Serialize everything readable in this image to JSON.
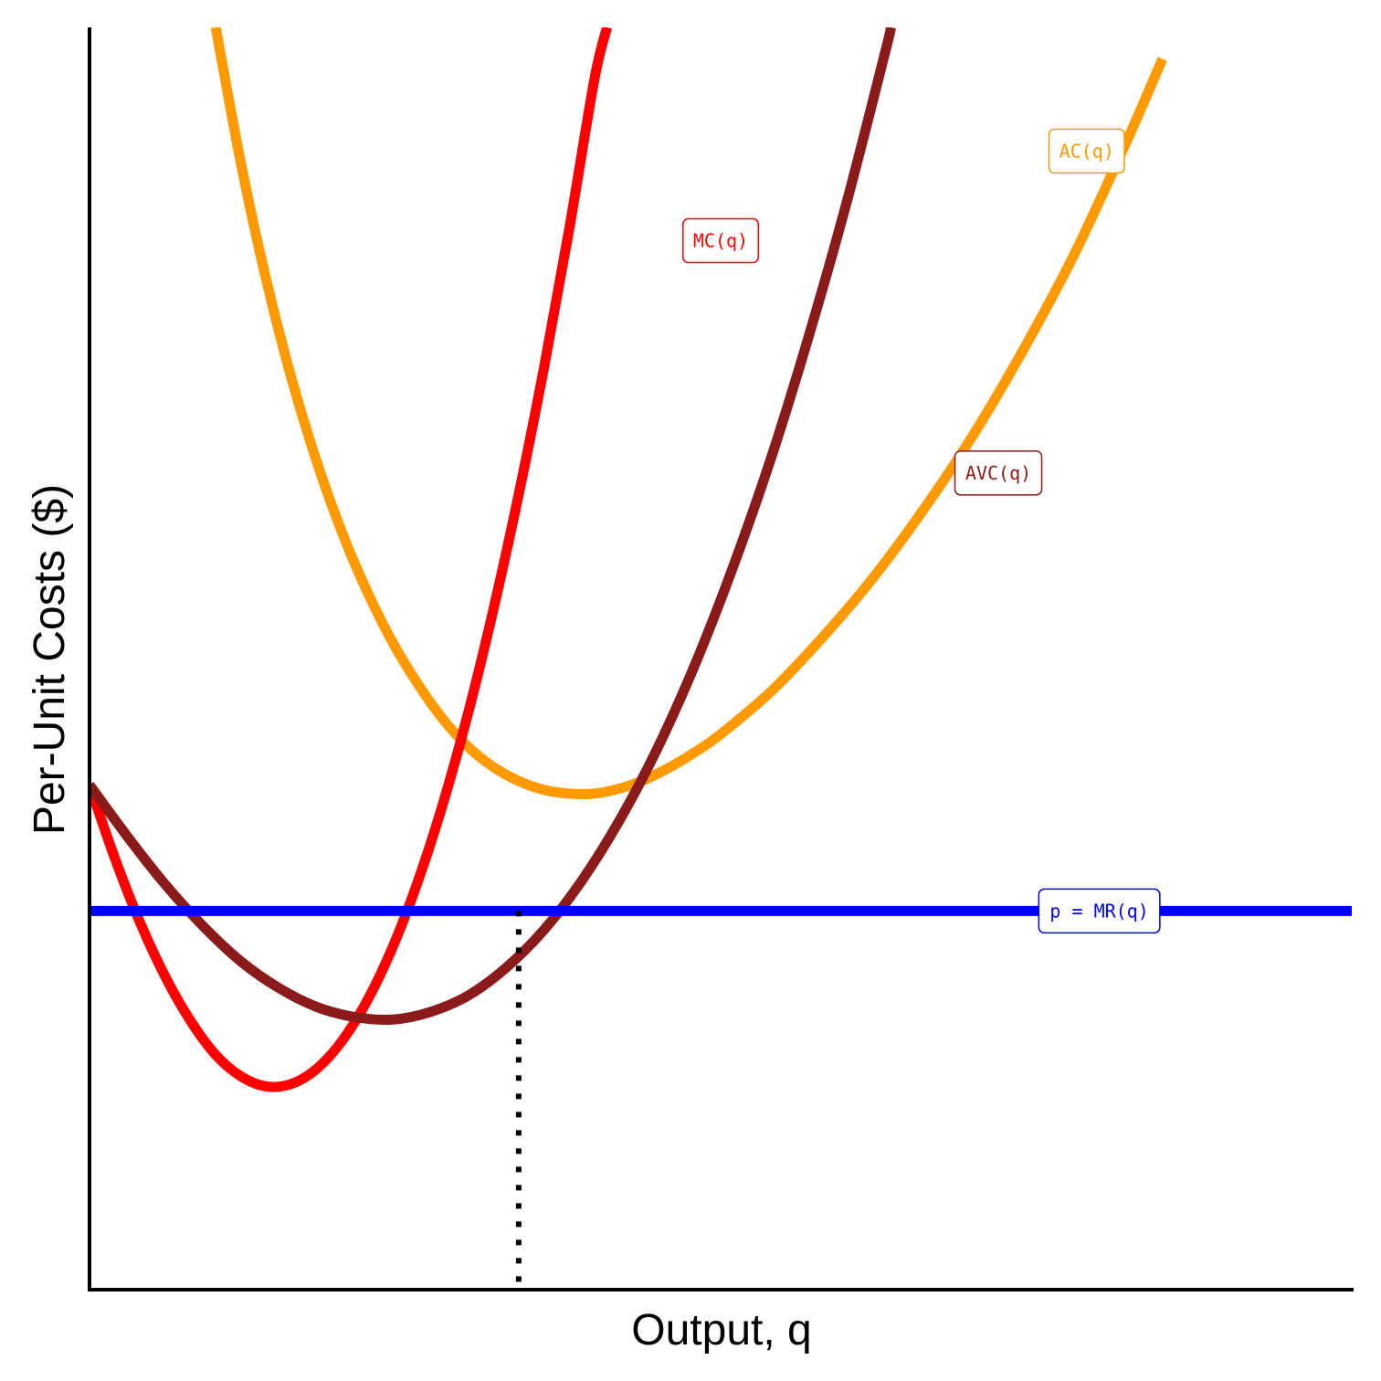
{
  "chart_data": {
    "type": "line",
    "title": "",
    "xlabel": "Output, q",
    "ylabel": "Per-Unit Costs ($)",
    "xlim": [
      0,
      10
    ],
    "ylim": [
      0,
      10
    ],
    "grid": false,
    "ticks": false,
    "series": [
      {
        "name": "AC(q)",
        "color": "#FF9900",
        "label_at": [
          7.9,
          9.02
        ],
        "points": [
          [
            1.0,
            10.0
          ],
          [
            1.2,
            8.92
          ],
          [
            1.4,
            8.0
          ],
          [
            1.6,
            7.22
          ],
          [
            1.8,
            6.56
          ],
          [
            2.0,
            6.0
          ],
          [
            2.2,
            5.53
          ],
          [
            2.4,
            5.13
          ],
          [
            2.6,
            4.8
          ],
          [
            2.8,
            4.52
          ],
          [
            3.0,
            4.3
          ],
          [
            3.2,
            4.14
          ],
          [
            3.4,
            4.03
          ],
          [
            3.6,
            3.96
          ],
          [
            3.8,
            3.93
          ],
          [
            4.0,
            3.93
          ],
          [
            4.2,
            3.97
          ],
          [
            4.4,
            4.04
          ],
          [
            4.6,
            4.14
          ],
          [
            4.8,
            4.26
          ],
          [
            5.0,
            4.4
          ],
          [
            5.4,
            4.74
          ],
          [
            5.8,
            5.16
          ],
          [
            6.2,
            5.63
          ],
          [
            6.6,
            6.17
          ],
          [
            7.0,
            6.77
          ],
          [
            7.4,
            7.45
          ],
          [
            7.8,
            8.2
          ],
          [
            8.2,
            9.06
          ],
          [
            8.5,
            9.75
          ]
        ]
      },
      {
        "name": "MC(q)",
        "color": "#FF0000",
        "label_at": [
          5.0,
          8.31
        ],
        "points": [
          [
            0.0,
            4.0
          ],
          [
            0.2,
            3.42
          ],
          [
            0.4,
            2.91
          ],
          [
            0.6,
            2.48
          ],
          [
            0.8,
            2.13
          ],
          [
            1.0,
            1.86
          ],
          [
            1.2,
            1.69
          ],
          [
            1.4,
            1.61
          ],
          [
            1.6,
            1.63
          ],
          [
            1.8,
            1.75
          ],
          [
            2.0,
            1.97
          ],
          [
            2.2,
            2.29
          ],
          [
            2.4,
            2.71
          ],
          [
            2.6,
            3.23
          ],
          [
            2.8,
            3.85
          ],
          [
            3.0,
            4.57
          ],
          [
            3.2,
            5.39
          ],
          [
            3.4,
            6.3
          ],
          [
            3.6,
            7.3
          ],
          [
            3.8,
            8.4
          ],
          [
            4.0,
            9.59
          ],
          [
            4.1,
            10.0
          ]
        ]
      },
      {
        "name": "AVC(q)",
        "color": "#8B1A1A",
        "label_at": [
          7.2,
          6.47
        ],
        "points": [
          [
            0.0,
            4.0
          ],
          [
            0.3,
            3.59
          ],
          [
            0.6,
            3.21
          ],
          [
            0.9,
            2.88
          ],
          [
            1.2,
            2.6
          ],
          [
            1.5,
            2.39
          ],
          [
            1.8,
            2.24
          ],
          [
            2.1,
            2.16
          ],
          [
            2.4,
            2.14
          ],
          [
            2.7,
            2.2
          ],
          [
            3.0,
            2.33
          ],
          [
            3.3,
            2.55
          ],
          [
            3.6,
            2.85
          ],
          [
            3.9,
            3.24
          ],
          [
            4.2,
            3.72
          ],
          [
            4.5,
            4.29
          ],
          [
            4.8,
            4.96
          ],
          [
            5.1,
            5.73
          ],
          [
            5.4,
            6.59
          ],
          [
            5.7,
            7.56
          ],
          [
            6.0,
            8.62
          ],
          [
            6.3,
            9.79
          ],
          [
            6.35,
            10.0
          ]
        ]
      },
      {
        "name": "p = MR(q)",
        "color": "#0000FF",
        "label_at": [
          8.0,
          3.0
        ],
        "points": [
          [
            0.0,
            3.0
          ],
          [
            10.0,
            3.0
          ]
        ]
      }
    ],
    "annotations": [
      {
        "type": "vertical-dotted",
        "x": 3.4,
        "from_y": 0,
        "to_y": 3.0,
        "color": "#000000"
      }
    ]
  }
}
